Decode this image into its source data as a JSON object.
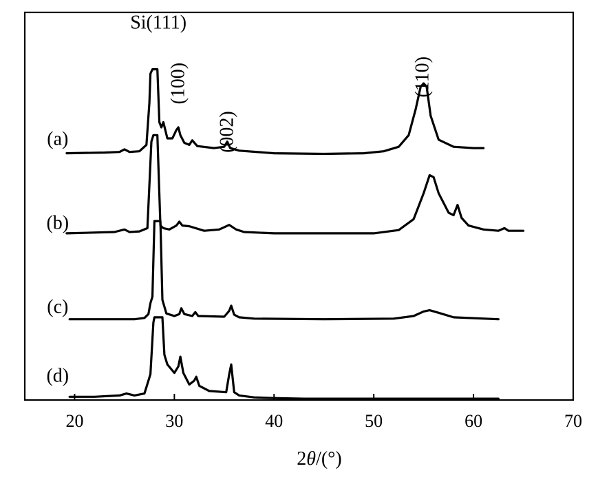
{
  "chart_data": {
    "type": "line",
    "title": "",
    "xlabel": "2θ/(°)",
    "xlabel_parts": {
      "prefix": "2",
      "symbol": "θ",
      "suffix": "/(°)"
    },
    "ylabel": "",
    "xlim": [
      15,
      70
    ],
    "ylim": [
      0,
      6
    ],
    "x_ticks": [
      20,
      30,
      40,
      50,
      60,
      70
    ],
    "grid": false,
    "legend": "none",
    "line_color": "#000000",
    "peak_labels": [
      {
        "text": "Si(111)",
        "x": 28.4,
        "y": 5.75,
        "rotated": false
      },
      {
        "text": "(100)",
        "x": 30.4,
        "y": 4.9,
        "rotated": true
      },
      {
        "text": "(002)",
        "x": 35.3,
        "y": 4.15,
        "rotated": true
      },
      {
        "text": "(110)",
        "x": 54.9,
        "y": 5.0,
        "rotated": true
      }
    ],
    "series": [
      {
        "label": "(a)",
        "label_x": 18.3,
        "label_y": 3.95,
        "x": [
          19.2,
          23,
          24.5,
          25,
          25.5,
          26.5,
          27.2,
          27.5,
          27.6,
          27.8,
          28.3,
          28.5,
          28.7,
          28.9,
          29.3,
          29.8,
          30.2,
          30.4,
          30.6,
          31.0,
          31.5,
          31.8,
          32.3,
          34.0,
          35.0,
          35.3,
          35.6,
          36.5,
          40,
          45,
          49,
          51,
          52.5,
          53.5,
          54.2,
          54.7,
          55.0,
          55.3,
          55.7,
          56.5,
          58,
          60,
          61.0
        ],
        "y": [
          3.82,
          3.83,
          3.84,
          3.88,
          3.84,
          3.85,
          3.95,
          4.6,
          5.05,
          5.12,
          5.12,
          4.3,
          4.22,
          4.3,
          4.05,
          4.05,
          4.18,
          4.22,
          4.1,
          3.98,
          3.95,
          4.02,
          3.93,
          3.9,
          3.92,
          4.0,
          3.9,
          3.86,
          3.82,
          3.81,
          3.82,
          3.85,
          3.92,
          4.1,
          4.5,
          4.85,
          4.9,
          4.85,
          4.4,
          4.03,
          3.92,
          3.9,
          3.9
        ]
      },
      {
        "label": "(b)",
        "label_x": 18.3,
        "label_y": 2.65,
        "x": [
          19.2,
          24,
          25,
          25.5,
          26.5,
          27.3,
          27.7,
          27.9,
          28.3,
          28.6,
          28.9,
          29.5,
          30.2,
          30.5,
          30.8,
          31.5,
          33,
          34.5,
          35.5,
          36.2,
          37,
          40,
          45,
          50,
          52.5,
          54,
          55.0,
          55.6,
          56.0,
          56.5,
          57.5,
          58.0,
          58.4,
          58.8,
          59.5,
          61,
          62.5,
          63.1,
          63.5,
          65.0
        ],
        "y": [
          2.58,
          2.6,
          2.64,
          2.6,
          2.61,
          2.66,
          4.0,
          4.1,
          4.1,
          2.7,
          2.66,
          2.64,
          2.7,
          2.76,
          2.7,
          2.69,
          2.62,
          2.64,
          2.71,
          2.64,
          2.6,
          2.58,
          2.58,
          2.58,
          2.63,
          2.8,
          3.2,
          3.48,
          3.45,
          3.2,
          2.9,
          2.86,
          3.02,
          2.82,
          2.7,
          2.64,
          2.62,
          2.66,
          2.62,
          2.62
        ]
      },
      {
        "label": "(c)",
        "label_x": 18.3,
        "label_y": 1.35,
        "x": [
          19.5,
          26,
          27.0,
          27.4,
          27.6,
          27.8,
          28.0,
          28.6,
          28.8,
          29.2,
          30,
          30.5,
          30.7,
          31.0,
          31.8,
          32.1,
          32.4,
          35,
          35.5,
          35.7,
          36.0,
          36.5,
          38,
          45,
          52,
          54,
          55.0,
          55.6,
          56.5,
          58,
          62.5
        ],
        "y": [
          1.25,
          1.25,
          1.27,
          1.33,
          1.5,
          1.6,
          2.77,
          2.77,
          1.55,
          1.34,
          1.3,
          1.33,
          1.42,
          1.33,
          1.3,
          1.36,
          1.3,
          1.29,
          1.38,
          1.46,
          1.32,
          1.28,
          1.26,
          1.25,
          1.26,
          1.3,
          1.37,
          1.39,
          1.35,
          1.28,
          1.25
        ]
      },
      {
        "label": "(d)",
        "label_x": 18.3,
        "label_y": 0.28,
        "x": [
          19.5,
          22,
          24.5,
          25.2,
          26,
          27.0,
          27.6,
          27.9,
          28.0,
          28.8,
          29.0,
          29.3,
          30,
          30.4,
          30.6,
          30.9,
          31.5,
          32.0,
          32.2,
          32.5,
          33.5,
          35.2,
          35.5,
          35.7,
          36.0,
          36.5,
          38,
          40,
          43,
          46,
          52,
          58,
          62.5
        ],
        "y": [
          0.05,
          0.05,
          0.07,
          0.1,
          0.07,
          0.1,
          0.4,
          1.2,
          1.28,
          1.28,
          0.7,
          0.55,
          0.42,
          0.52,
          0.67,
          0.42,
          0.24,
          0.3,
          0.36,
          0.22,
          0.14,
          0.12,
          0.4,
          0.55,
          0.12,
          0.07,
          0.04,
          0.03,
          0.02,
          0.02,
          0.02,
          0.02,
          0.02
        ]
      }
    ]
  }
}
